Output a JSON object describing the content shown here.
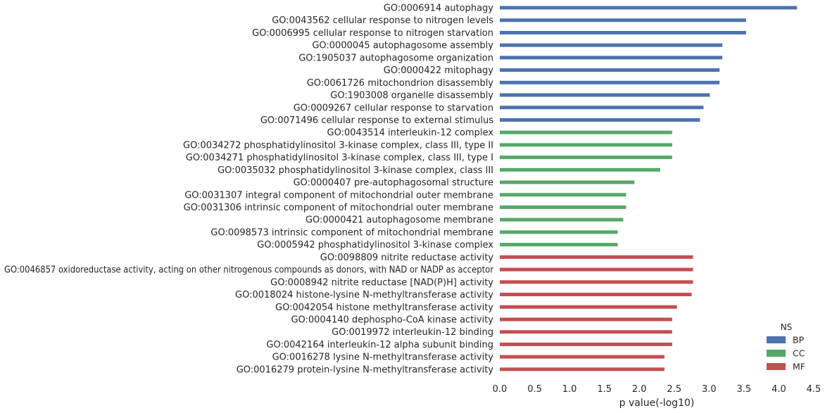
{
  "chart_data": {
    "type": "bar",
    "orientation": "horizontal",
    "xlabel": "p value(-log10)",
    "xlim": [
      0,
      4.5
    ],
    "xticks": [
      "0.0",
      "0.5",
      "1.0",
      "1.5",
      "2.0",
      "2.5",
      "3.0",
      "3.5",
      "4.0",
      "4.5"
    ],
    "grid": false,
    "legend": {
      "title": "NS",
      "position": "bottom-right",
      "entries": [
        {
          "name": "BP",
          "color": "#4c72b0"
        },
        {
          "name": "CC",
          "color": "#55a868"
        },
        {
          "name": "MF",
          "color": "#c44e52"
        }
      ]
    },
    "bars": [
      {
        "label": "GO:0006914 autophagy",
        "ns": "BP",
        "value": 4.26
      },
      {
        "label": "GO:0043562 cellular response to nitrogen levels",
        "ns": "BP",
        "value": 3.53
      },
      {
        "label": "GO:0006995 cellular response to nitrogen starvation",
        "ns": "BP",
        "value": 3.53
      },
      {
        "label": "GO:0000045 autophagosome assembly",
        "ns": "BP",
        "value": 3.19
      },
      {
        "label": "GO:1905037 autophagosome organization",
        "ns": "BP",
        "value": 3.19
      },
      {
        "label": "GO:0000422 mitophagy",
        "ns": "BP",
        "value": 3.15
      },
      {
        "label": "GO:0061726 mitochondrion disassembly",
        "ns": "BP",
        "value": 3.15
      },
      {
        "label": "GO:1903008 organelle disassembly",
        "ns": "BP",
        "value": 3.01
      },
      {
        "label": "GO:0009267 cellular response to starvation",
        "ns": "BP",
        "value": 2.92
      },
      {
        "label": "GO:0071496 cellular response to external stimulus",
        "ns": "BP",
        "value": 2.87
      },
      {
        "label": "GO:0043514 interleukin-12 complex",
        "ns": "CC",
        "value": 2.47
      },
      {
        "label": "GO:0034272 phosphatidylinositol 3-kinase complex, class III, type II",
        "ns": "CC",
        "value": 2.47
      },
      {
        "label": "GO:0034271 phosphatidylinositol 3-kinase complex, class III, type I",
        "ns": "CC",
        "value": 2.47
      },
      {
        "label": "GO:0035032 phosphatidylinositol 3-kinase complex, class III",
        "ns": "CC",
        "value": 2.3
      },
      {
        "label": "GO:0000407 pre-autophagosomal structure",
        "ns": "CC",
        "value": 1.93
      },
      {
        "label": "GO:0031307 integral component of mitochondrial outer membrane",
        "ns": "CC",
        "value": 1.81
      },
      {
        "label": "GO:0031306 intrinsic component of mitochondrial outer membrane",
        "ns": "CC",
        "value": 1.81
      },
      {
        "label": "GO:0000421 autophagosome membrane",
        "ns": "CC",
        "value": 1.77
      },
      {
        "label": "GO:0098573 intrinsic component of mitochondrial membrane",
        "ns": "CC",
        "value": 1.69
      },
      {
        "label": "GO:0005942 phosphatidylinositol 3-kinase complex",
        "ns": "CC",
        "value": 1.69
      },
      {
        "label": "GO:0098809 nitrite reductase activity",
        "ns": "MF",
        "value": 2.77
      },
      {
        "label": "GO:0046857 oxidoreductase activity, acting on other nitrogenous compounds as donors, with NAD or NADP as acceptor",
        "ns": "MF",
        "value": 2.77
      },
      {
        "label": "GO:0008942 nitrite reductase [NAD(P)H] activity",
        "ns": "MF",
        "value": 2.77
      },
      {
        "label": "GO:0018024 histone-lysine N-methyltransferase activity",
        "ns": "MF",
        "value": 2.75
      },
      {
        "label": "GO:0042054 histone methyltransferase activity",
        "ns": "MF",
        "value": 2.54
      },
      {
        "label": "GO:0004140 dephospho-CoA kinase activity",
        "ns": "MF",
        "value": 2.47
      },
      {
        "label": "GO:0019972 interleukin-12 binding",
        "ns": "MF",
        "value": 2.47
      },
      {
        "label": "GO:0042164 interleukin-12 alpha subunit binding",
        "ns": "MF",
        "value": 2.47
      },
      {
        "label": "GO:0016278 lysine N-methyltransferase activity",
        "ns": "MF",
        "value": 2.36
      },
      {
        "label": "GO:0016279 protein-lysine N-methyltransferase activity",
        "ns": "MF",
        "value": 2.36
      }
    ]
  }
}
